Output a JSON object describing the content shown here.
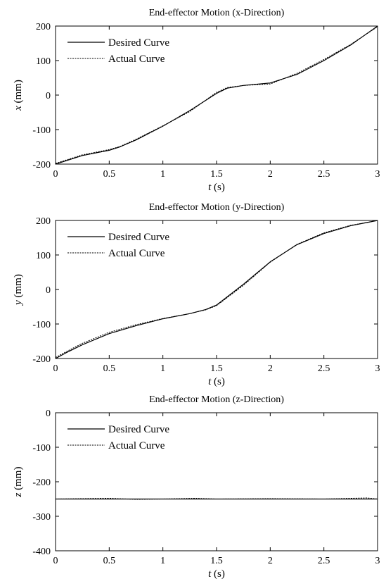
{
  "chart_data": [
    {
      "type": "line",
      "title": "End-effector Motion (x-Direction)",
      "xlabel_var": "t",
      "xlabel_unit": " (s)",
      "ylabel_var": "x",
      "ylabel_unit": " (mm)",
      "xlim": [
        0,
        3
      ],
      "ylim": [
        -200,
        200
      ],
      "xticks": [
        0,
        0.5,
        1,
        1.5,
        2,
        2.5,
        3
      ],
      "xtick_labels": [
        "0",
        "0.5",
        "1",
        "1.5",
        "2",
        "2.5",
        "3"
      ],
      "yticks": [
        -200,
        -100,
        0,
        100,
        200
      ],
      "ytick_labels": [
        "-200",
        "-100",
        "0",
        "100",
        "200"
      ],
      "grid": false,
      "legend_position": "top-left",
      "series": [
        {
          "name": "Desired Curve",
          "style": "solid",
          "x": [
            0,
            0.25,
            0.5,
            0.6,
            0.75,
            1,
            1.25,
            1.5,
            1.6,
            1.75,
            2,
            2.25,
            2.5,
            2.75,
            3
          ],
          "y": [
            -200,
            -175,
            -160,
            -150,
            -130,
            -90,
            -45,
            5,
            20,
            28,
            35,
            60,
            100,
            145,
            200
          ]
        },
        {
          "name": "Actual Curve",
          "style": "dotted",
          "x": [
            0,
            0.25,
            0.5,
            0.6,
            0.75,
            1,
            1.25,
            1.5,
            1.6,
            1.75,
            2,
            2.25,
            2.5,
            2.75,
            3
          ],
          "y": [
            -198,
            -173,
            -158,
            -149,
            -128,
            -89,
            -48,
            8,
            22,
            28,
            32,
            63,
            103,
            147,
            198
          ]
        }
      ]
    },
    {
      "type": "line",
      "title": "End-effector Motion (y-Direction)",
      "xlabel_var": "t",
      "xlabel_unit": " (s)",
      "ylabel_var": "y",
      "ylabel_unit": " (mm)",
      "xlim": [
        0,
        3
      ],
      "ylim": [
        -200,
        200
      ],
      "xticks": [
        0,
        0.5,
        1,
        1.5,
        2,
        2.5,
        3
      ],
      "xtick_labels": [
        "0",
        "0.5",
        "1",
        "1.5",
        "2",
        "2.5",
        "3"
      ],
      "yticks": [
        -200,
        -100,
        0,
        100,
        200
      ],
      "ytick_labels": [
        "-200",
        "-100",
        "0",
        "100",
        "200"
      ],
      "grid": false,
      "legend_position": "top-left",
      "series": [
        {
          "name": "Desired Curve",
          "style": "solid",
          "x": [
            0,
            0.1,
            0.25,
            0.5,
            0.75,
            1,
            1.25,
            1.4,
            1.5,
            1.75,
            2,
            2.25,
            2.5,
            2.75,
            3
          ],
          "y": [
            -200,
            -183,
            -160,
            -128,
            -105,
            -85,
            -70,
            -58,
            -45,
            15,
            80,
            130,
            162,
            185,
            200
          ]
        },
        {
          "name": "Actual Curve",
          "style": "dotted",
          "x": [
            0,
            0.1,
            0.25,
            0.5,
            0.75,
            1,
            1.25,
            1.4,
            1.5,
            1.75,
            2,
            2.25,
            2.5,
            2.75,
            3
          ],
          "y": [
            -197,
            -180,
            -156,
            -124,
            -102,
            -84,
            -70,
            -59,
            -47,
            12,
            79,
            131,
            164,
            186,
            200
          ]
        }
      ]
    },
    {
      "type": "line",
      "title": "End-effector Motion (z-Direction)",
      "xlabel_var": "t",
      "xlabel_unit": " (s)",
      "ylabel_var": "z",
      "ylabel_unit": " (mm)",
      "xlim": [
        0,
        3
      ],
      "ylim": [
        -400,
        0
      ],
      "xticks": [
        0,
        0.5,
        1,
        1.5,
        2,
        2.5,
        3
      ],
      "xtick_labels": [
        "0",
        "0.5",
        "1",
        "1.5",
        "2",
        "2.5",
        "3"
      ],
      "yticks": [
        -400,
        -300,
        -200,
        -100,
        0
      ],
      "ytick_labels": [
        "-400",
        "-300",
        "-200",
        "-100",
        "0"
      ],
      "grid": false,
      "legend_position": "top-left",
      "series": [
        {
          "name": "Desired Curve",
          "style": "solid",
          "x": [
            0,
            0.5,
            1,
            1.5,
            2,
            2.5,
            3
          ],
          "y": [
            -250,
            -250,
            -250,
            -250,
            -250,
            -250,
            -250
          ]
        },
        {
          "name": "Actual Curve",
          "style": "dotted",
          "x": [
            0,
            0.25,
            0.5,
            0.75,
            1,
            1.3,
            1.5,
            2,
            2.5,
            2.9,
            3
          ],
          "y": [
            -250,
            -249,
            -248,
            -251,
            -250,
            -248,
            -250,
            -249,
            -250,
            -247,
            -250
          ]
        }
      ]
    }
  ]
}
